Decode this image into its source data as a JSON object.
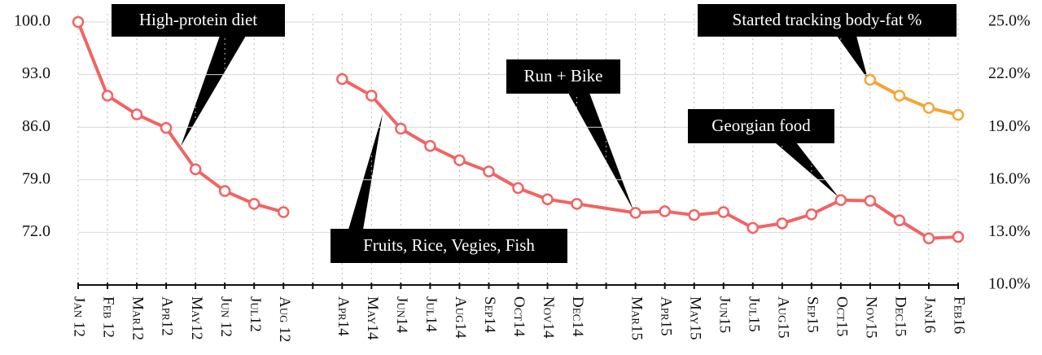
{
  "chart_data": {
    "type": "line",
    "categories": [
      "Jan 12",
      "Feb 12",
      "Mar12",
      "Apr12",
      "May12",
      "Jun 12",
      "Jul12",
      "Aug 12",
      null,
      "Apr14",
      "May14",
      "Jun14",
      "Jul14",
      "Aug14",
      "Sep14",
      "Oct14",
      "Nov14",
      "Dec14",
      null,
      "Mar15",
      "Apr15",
      "May15",
      "Jun15",
      "Jul15",
      "Aug15",
      "Sep15",
      "Oct15",
      "Nov15",
      "Dec15",
      "Jan16",
      "Feb16"
    ],
    "series": [
      {
        "color": "#f26363",
        "values": [
          100,
          90.2,
          87.7,
          85.9,
          80.4,
          77.5,
          75.8,
          74.7,
          null,
          null,
          null,
          null,
          null,
          null,
          null,
          null,
          null,
          null,
          null,
          null,
          null,
          null,
          null,
          null,
          null,
          null,
          null,
          null,
          null,
          null,
          null
        ]
      },
      {
        "color": "#f26363",
        "connect_gaps": true,
        "values": [
          null,
          null,
          null,
          null,
          null,
          null,
          null,
          null,
          null,
          92.4,
          90.2,
          85.8,
          83.5,
          81.6,
          80.1,
          77.9,
          76.4,
          75.8,
          null,
          74.6,
          74.8,
          74.3,
          74.7,
          72.6,
          73.2,
          74.4,
          76.3,
          76.2,
          73.6,
          71.2,
          71.4
        ]
      },
      {
        "color": "#f5a533",
        "axis": "y2",
        "values": [
          null,
          null,
          null,
          null,
          null,
          null,
          null,
          null,
          null,
          null,
          null,
          null,
          null,
          null,
          null,
          null,
          null,
          null,
          null,
          null,
          null,
          null,
          null,
          null,
          null,
          null,
          null,
          21.7,
          20.8,
          20.1,
          19.7
        ]
      }
    ],
    "ylim": [
      65,
      100
    ],
    "yticks": [
      {
        "value": 72,
        "label": "72.0"
      },
      {
        "value": 79,
        "label": "79.0"
      },
      {
        "value": 86,
        "label": "86.0"
      },
      {
        "value": 93,
        "label": "93.0"
      },
      {
        "value": 100,
        "label": "100.0"
      }
    ],
    "y2lim": [
      10,
      25
    ],
    "y2ticks": [
      {
        "value": 10,
        "label": "10.0%"
      },
      {
        "value": 13,
        "label": "13.0%"
      },
      {
        "value": 16,
        "label": "16.0%"
      },
      {
        "value": 19,
        "label": "19.0%"
      },
      {
        "value": 22,
        "label": "22.0%"
      },
      {
        "value": 25,
        "label": "25.0%"
      }
    ],
    "grid": true,
    "annotations": [
      "High-protein diet",
      "Fruits, Rice, Vegies, Fish",
      "Run + Bike",
      "Georgian food",
      "Started tracking body-fat %"
    ]
  }
}
